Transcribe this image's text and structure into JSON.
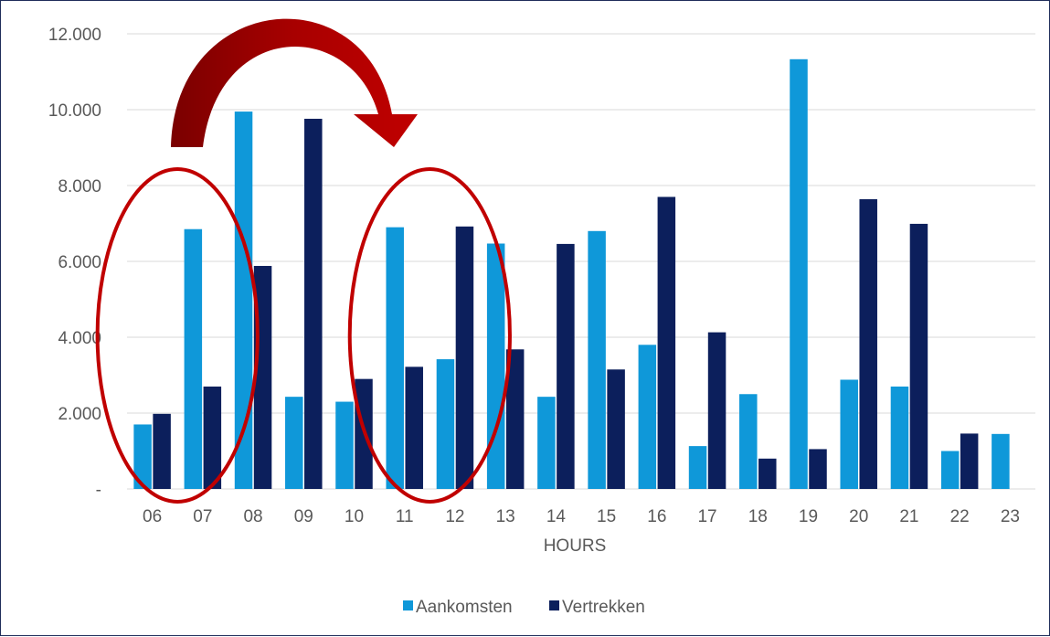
{
  "chart_data": {
    "type": "bar",
    "categories": [
      "06",
      "07",
      "08",
      "09",
      "10",
      "11",
      "12",
      "13",
      "14",
      "15",
      "16",
      "17",
      "18",
      "19",
      "20",
      "21",
      "22",
      "23"
    ],
    "series": [
      {
        "name": "Aankomsten",
        "color": "#0f98d9",
        "values": [
          1700,
          6850,
          9950,
          2430,
          2300,
          6900,
          3420,
          6470,
          2430,
          6800,
          3800,
          1130,
          2500,
          11330,
          2880,
          2700,
          1000,
          1450
        ]
      },
      {
        "name": "Vertrekken",
        "color": "#0c1f5c",
        "values": [
          1980,
          2700,
          5880,
          9760,
          2900,
          3220,
          6920,
          3680,
          6460,
          3150,
          7700,
          4130,
          800,
          1050,
          7640,
          6990,
          1460,
          0
        ]
      }
    ],
    "xlabel": "HOURS",
    "ylabel": "",
    "ylim": [
      0,
      12000
    ],
    "yticks": [
      {
        "value": 0,
        "label": "-"
      },
      {
        "value": 2000,
        "label": "2.000"
      },
      {
        "value": 4000,
        "label": "4.000"
      },
      {
        "value": 6000,
        "label": "6.000"
      },
      {
        "value": 8000,
        "label": "8.000"
      },
      {
        "value": 10000,
        "label": "10.000"
      },
      {
        "value": 12000,
        "label": "12.000"
      }
    ],
    "grid": true,
    "legend_position": "bottom",
    "annotations": [
      {
        "type": "ellipse",
        "color": "#c00000",
        "around_categories": [
          "06",
          "07"
        ]
      },
      {
        "type": "ellipse",
        "color": "#c00000",
        "around_categories": [
          "11",
          "12"
        ]
      },
      {
        "type": "curved-arrow",
        "color": "#c00000",
        "from_category": "07",
        "to_category": "11"
      }
    ]
  }
}
